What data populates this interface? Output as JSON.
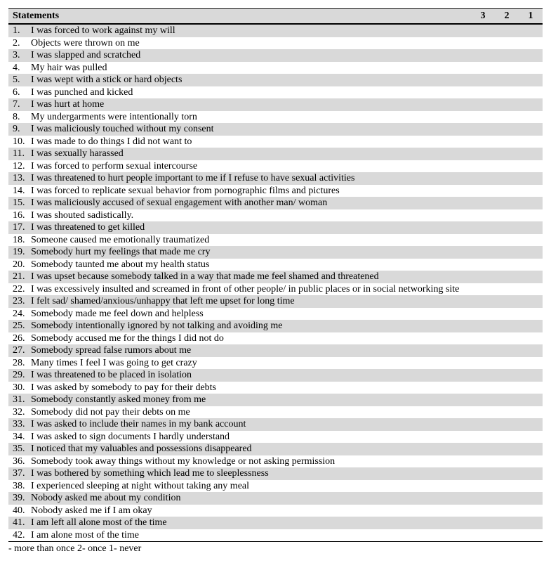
{
  "header": {
    "statements_label": "Statements",
    "col3": "3",
    "col2": "2",
    "col1": "1"
  },
  "legend": "- more than once  2- once  1- never",
  "background_odd": "#d9d9d9",
  "background_even": "#ffffff",
  "font_family": "Times New Roman",
  "font_size_pt": 10.5,
  "rows": [
    {
      "n": "1.",
      "t": "I was forced to work against my will"
    },
    {
      "n": "2.",
      "t": "Objects were thrown on me"
    },
    {
      "n": "3.",
      "t": "I was slapped and scratched"
    },
    {
      "n": "4.",
      "t": "My hair was pulled"
    },
    {
      "n": "5.",
      "t": "I was wept with a stick or hard objects"
    },
    {
      "n": "6.",
      "t": "I was punched and kicked"
    },
    {
      "n": "7.",
      "t": "I was hurt at home"
    },
    {
      "n": "8.",
      "t": "My undergarments were intentionally torn"
    },
    {
      "n": "9.",
      "t": "I was maliciously touched without my consent"
    },
    {
      "n": "10.",
      "t": "I was made to do things I did not want to"
    },
    {
      "n": "11.",
      "t": "I was sexually harassed"
    },
    {
      "n": "12.",
      "t": "I was forced to perform sexual intercourse"
    },
    {
      "n": "13.",
      "t": "I was threatened to hurt people important to me if I refuse to have sexual activities"
    },
    {
      "n": "14.",
      "t": "I was forced to replicate sexual behavior from pornographic films and pictures"
    },
    {
      "n": "15.",
      "t": "I was maliciously accused of sexual engagement with another man/ woman"
    },
    {
      "n": "16.",
      "t": "I was shouted sadistically."
    },
    {
      "n": "17.",
      "t": "I was threatened to get killed"
    },
    {
      "n": "18.",
      "t": "Someone caused me emotionally traumatized"
    },
    {
      "n": "19.",
      "t": "Somebody hurt my feelings that made me cry"
    },
    {
      "n": "20.",
      "t": "Somebody taunted me about my health status"
    },
    {
      "n": "21.",
      "t": "I was upset because somebody talked in a way that made me feel shamed and threatened"
    },
    {
      "n": "22.",
      "t": "I was excessively insulted and screamed in front of other people/ in public places or in social networking site"
    },
    {
      "n": "23.",
      "t": "I felt sad/ shamed/anxious/unhappy that left me upset for long time"
    },
    {
      "n": "24.",
      "t": "Somebody made me feel down and helpless"
    },
    {
      "n": "25.",
      "t": "Somebody intentionally ignored by not talking and avoiding me"
    },
    {
      "n": "26.",
      "t": "Somebody accused me for the things I did not do"
    },
    {
      "n": "27.",
      "t": "Somebody spread false rumors about me"
    },
    {
      "n": "28.",
      "t": "Many times I feel I was going to get crazy"
    },
    {
      "n": "29.",
      "t": "I was threatened to be placed in isolation"
    },
    {
      "n": "30.",
      "t": "I was asked by somebody to pay for their debts"
    },
    {
      "n": "31.",
      "t": "Somebody constantly asked money from me"
    },
    {
      "n": "32.",
      "t": "Somebody did not pay their debts on me"
    },
    {
      "n": "33.",
      "t": "I was asked to include their names in my bank account"
    },
    {
      "n": "34.",
      "t": "I was asked to sign documents I hardly understand"
    },
    {
      "n": "35.",
      "t": "I noticed that my valuables and possessions disappeared"
    },
    {
      "n": "36.",
      "t": "Somebody took away things without my knowledge or not asking permission"
    },
    {
      "n": "37.",
      "t": "I was bothered by something which lead me to sleeplessness"
    },
    {
      "n": "38.",
      "t": "I experienced sleeping at night without taking any meal"
    },
    {
      "n": "39.",
      "t": "Nobody asked me about my condition"
    },
    {
      "n": "40.",
      "t": "Nobody asked me if I am okay"
    },
    {
      "n": "41.",
      "t": "I am left all alone most of the time"
    },
    {
      "n": "42.",
      "t": "I am alone most of the time"
    }
  ]
}
